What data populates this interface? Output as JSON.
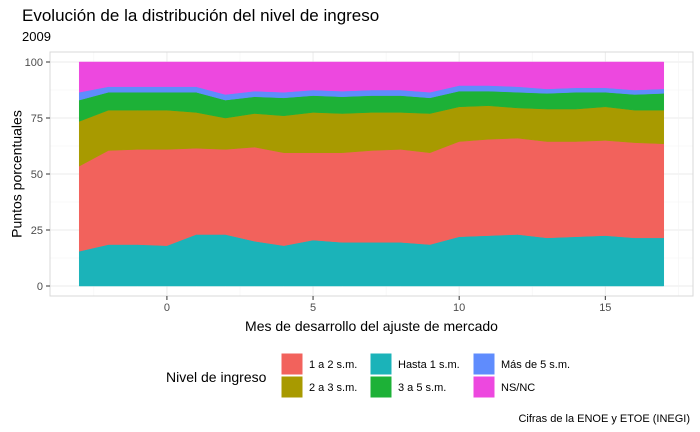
{
  "chart_data": {
    "type": "area",
    "stacked": true,
    "title": "Evolución de la distribución del nivel de ingreso",
    "subtitle": "2009",
    "xlabel": "Mes de desarrollo del ajuste de mercado",
    "ylabel": "Puntos porcentuales",
    "caption": "Cifras de la ENOE y ETOE (INEGI)",
    "xlim": [
      -4,
      18
    ],
    "ylim": [
      0,
      100
    ],
    "x_ticks": [
      0,
      5,
      10,
      15
    ],
    "y_ticks": [
      0,
      25,
      50,
      75,
      100
    ],
    "grid": true,
    "legend_title": "Nivel de ingreso",
    "legend_position": "bottom",
    "legend_order": [
      "1 a 2 s.m.",
      "2 a 3 s.m.",
      "Hasta 1 s.m.",
      "3 a 5 s.m.",
      "Más de 5 s.m.",
      "NS/NC"
    ],
    "x": [
      -3,
      -2,
      -1,
      0,
      1,
      2,
      3,
      4,
      5,
      6,
      7,
      8,
      9,
      10,
      11,
      12,
      13,
      14,
      15,
      16,
      17
    ],
    "series": [
      {
        "name": "Hasta 1 s.m.",
        "color": "#1BB3B9",
        "values": [
          15.5,
          18.5,
          18.5,
          18.0,
          23.0,
          23.0,
          20.0,
          18.0,
          20.5,
          19.5,
          19.5,
          19.5,
          18.5,
          22.0,
          22.5,
          23.0,
          21.5,
          22.0,
          22.5,
          21.5,
          21.5
        ]
      },
      {
        "name": "1 a 2 s.m.",
        "color": "#F2625C",
        "values": [
          38.0,
          42.0,
          42.5,
          43.0,
          38.5,
          38.0,
          42.0,
          41.5,
          39.0,
          40.0,
          41.0,
          41.5,
          41.0,
          42.5,
          43.0,
          43.0,
          43.0,
          42.5,
          42.5,
          42.5,
          42.0
        ]
      },
      {
        "name": "2 a 3 s.m.",
        "color": "#A89A00",
        "values": [
          20.0,
          18.0,
          17.5,
          17.5,
          16.0,
          14.0,
          15.0,
          16.5,
          18.0,
          17.5,
          17.0,
          16.5,
          17.5,
          15.5,
          15.0,
          13.5,
          14.5,
          14.5,
          15.0,
          14.5,
          15.0
        ]
      },
      {
        "name": "3 a 5 s.m.",
        "color": "#1DB137",
        "values": [
          9.5,
          8.0,
          8.0,
          8.0,
          9.0,
          8.0,
          7.5,
          8.0,
          7.5,
          7.5,
          7.5,
          7.5,
          7.0,
          7.0,
          6.5,
          7.0,
          7.0,
          7.5,
          6.5,
          7.0,
          7.5
        ]
      },
      {
        "name": "Más de 5 s.m.",
        "color": "#5F8CFD",
        "values": [
          3.5,
          2.5,
          2.5,
          2.5,
          2.5,
          2.5,
          2.5,
          2.5,
          2.5,
          2.5,
          2.5,
          2.5,
          2.5,
          2.5,
          2.5,
          2.5,
          2.0,
          2.0,
          2.0,
          2.0,
          2.0
        ]
      },
      {
        "name": "NS/NC",
        "color": "#ED48DF",
        "values": [
          13.5,
          11.0,
          11.0,
          11.0,
          11.0,
          14.5,
          13.0,
          13.5,
          12.5,
          13.0,
          12.5,
          12.5,
          13.5,
          10.5,
          10.5,
          11.0,
          12.0,
          11.5,
          11.5,
          12.5,
          12.0
        ]
      }
    ]
  }
}
